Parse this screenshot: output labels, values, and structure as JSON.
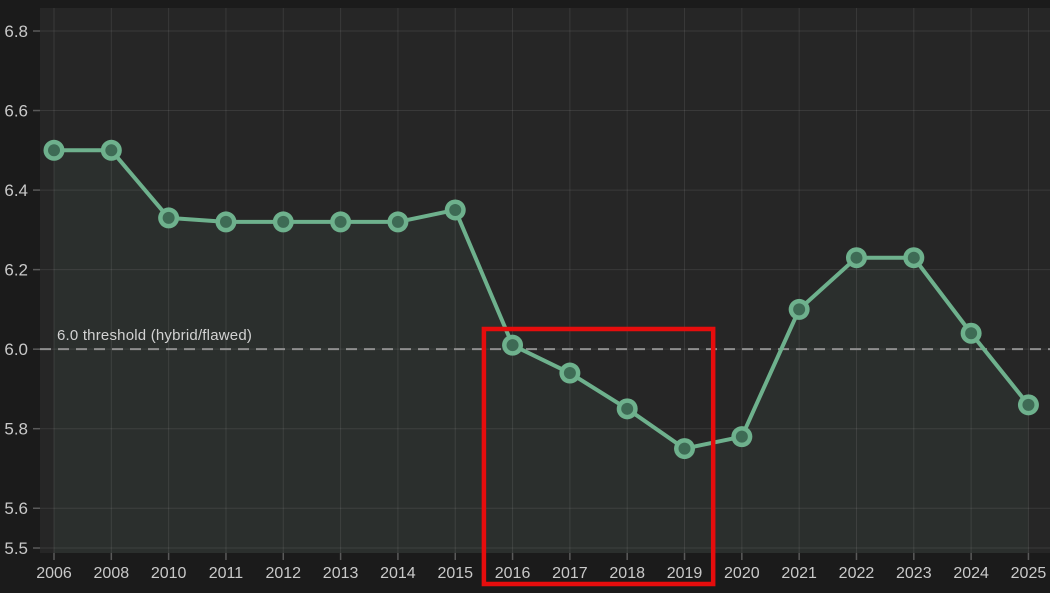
{
  "chart_data": {
    "type": "line",
    "categories": [
      "2006",
      "2008",
      "2010",
      "2011",
      "2012",
      "2013",
      "2014",
      "2015",
      "2016",
      "2017",
      "2018",
      "2019",
      "2020",
      "2021",
      "2022",
      "2023",
      "2024",
      "2025"
    ],
    "values": [
      6.5,
      6.5,
      6.33,
      6.32,
      6.32,
      6.32,
      6.32,
      6.35,
      6.01,
      5.94,
      5.85,
      5.75,
      5.78,
      6.1,
      6.23,
      6.23,
      6.04,
      5.86
    ],
    "title": "",
    "xlabel": "",
    "ylabel": "",
    "ylim": [
      5.5,
      6.8
    ],
    "y_ticks": [
      6.8,
      6.6,
      6.4,
      6.2,
      6.0,
      5.8,
      5.6,
      5.5
    ],
    "grid": true,
    "legend": false,
    "area_fill_under_line": true,
    "threshold": {
      "value": 6.0,
      "label": "6.0 threshold (hybrid/flawed)"
    },
    "highlight_box": {
      "from_category": "2016",
      "to_category": "2019"
    },
    "colors": {
      "figure_background": "#1b1b1b",
      "axes_background": "#262626",
      "line": "#6eb18d",
      "marker_fill": "#3e6b55",
      "area_fill": "rgba(110,177,140,0.07)",
      "grid_line": "rgba(255,255,255,0.09)",
      "tick_mark": "#5a5a5a",
      "threshold_line": "#8f8f8f",
      "highlight": "#e60d0d",
      "text": "#c9c9c9"
    }
  }
}
